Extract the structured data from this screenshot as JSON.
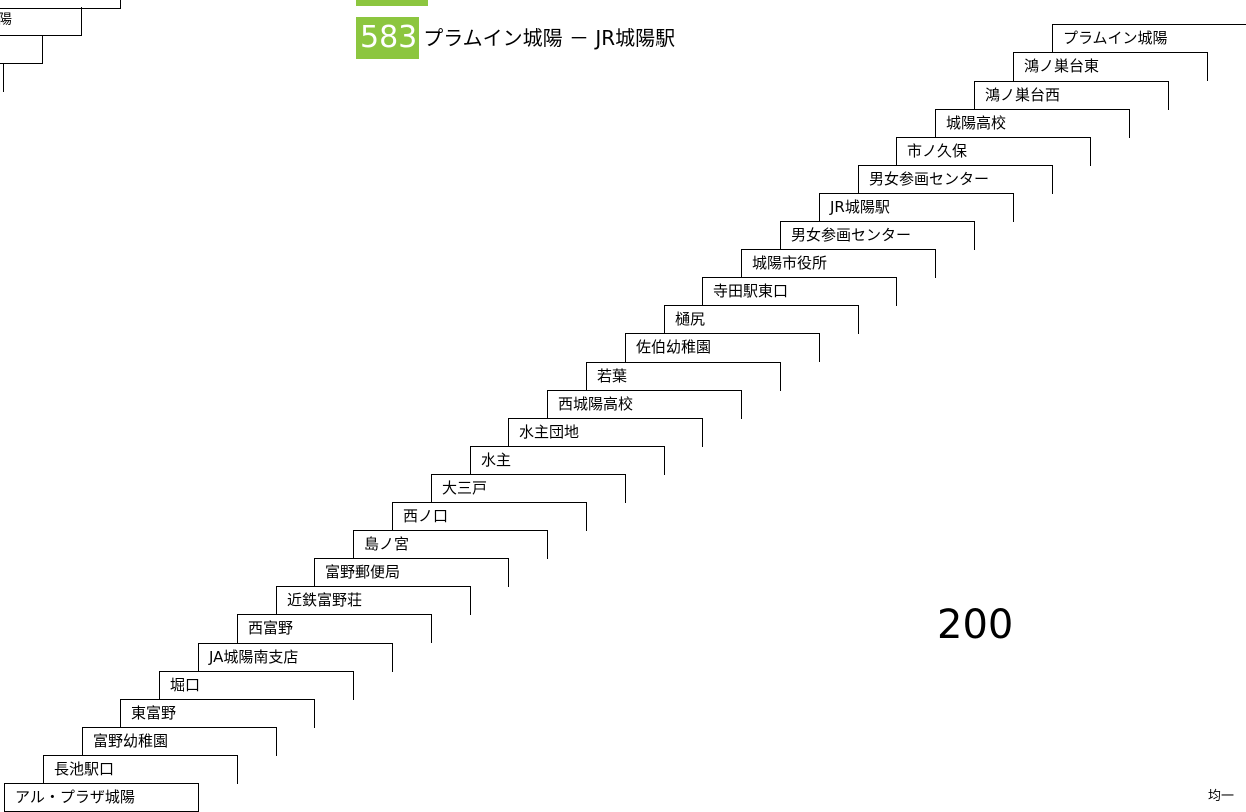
{
  "route": {
    "number": "583",
    "name": "プラムイン城陽 － JR城陽駅",
    "color": "#8cc63f"
  },
  "previous_route_fragment": {
    "label": "陽"
  },
  "stops": [
    "アル・プラザ城陽",
    "長池駅口",
    "富野幼稚園",
    "東富野",
    "堀口",
    "JA城陽南支店",
    "西富野",
    "近鉄富野荘",
    "富野郵便局",
    "島ノ宮",
    "西ノ口",
    "大三戸",
    "水主",
    "水主団地",
    "西城陽高校",
    "若葉",
    "佐伯幼稚園",
    "樋尻",
    "寺田駅東口",
    "城陽市役所",
    "男女参画センター",
    "JR城陽駅",
    "男女参画センター",
    "市ノ久保",
    "城陽高校",
    "鴻ノ巣台西",
    "鴻ノ巣台東",
    "プラムイン城陽"
  ],
  "fare": {
    "amount": "200",
    "type": "均一"
  }
}
